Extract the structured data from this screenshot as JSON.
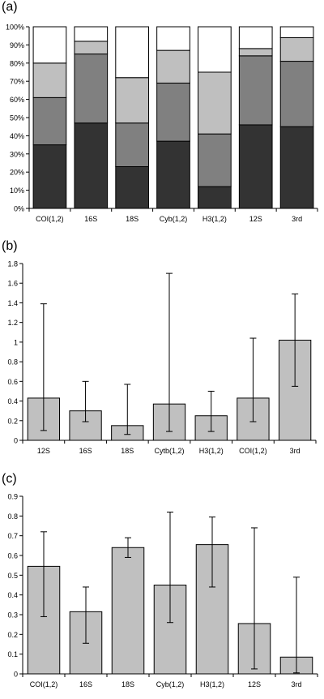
{
  "chart_data": [
    {
      "panel_label": "(a)",
      "type": "bar",
      "stacked": true,
      "percent": true,
      "categories": [
        "COI(1,2)",
        "16S",
        "18S",
        "Cyb(1,2)",
        "H3(1,2)",
        "12S",
        "3rd"
      ],
      "series": [
        {
          "color": "#333333",
          "values": [
            35,
            47,
            23,
            37,
            12,
            46,
            45
          ]
        },
        {
          "color": "#808080",
          "values": [
            26,
            38,
            24,
            32,
            29,
            38,
            36
          ]
        },
        {
          "color": "#bfbfbf",
          "values": [
            19,
            7,
            25,
            18,
            34,
            4,
            13
          ]
        },
        {
          "color": "#ffffff",
          "values": [
            20,
            8,
            28,
            13,
            25,
            12,
            6
          ]
        }
      ],
      "ylim": [
        0,
        100
      ],
      "yticks": [
        "0%",
        "10%",
        "20%",
        "30%",
        "40%",
        "50%",
        "60%",
        "70%",
        "80%",
        "90%",
        "100%"
      ],
      "grid": false,
      "legend": "none"
    },
    {
      "panel_label": "(b)",
      "type": "bar",
      "categories": [
        "12S",
        "16S",
        "18S",
        "Cytb(1,2)",
        "H3(1,2)",
        "COI(1,2)",
        "3rd"
      ],
      "values": [
        0.43,
        0.3,
        0.15,
        0.37,
        0.25,
        0.43,
        1.02
      ],
      "err_low": [
        0.1,
        0.19,
        0.06,
        0.09,
        0.09,
        0.19,
        0.55
      ],
      "err_high": [
        1.39,
        0.6,
        0.57,
        1.7,
        0.5,
        1.04,
        1.49
      ],
      "bar_color": "#c0c0c0",
      "ylim": [
        0,
        1.8
      ],
      "yticks": [
        "0",
        "0.2",
        "0.4",
        "0.6",
        "0.8",
        "1",
        "1.2",
        "1.4",
        "1.6",
        "1.8"
      ],
      "grid": false,
      "legend": "none"
    },
    {
      "panel_label": "(c)",
      "type": "bar",
      "categories": [
        "COI(1,2)",
        "16S",
        "18S",
        "Cyb(1,2)",
        "H3(1,2)",
        "12S",
        "3rd"
      ],
      "values": [
        0.545,
        0.315,
        0.64,
        0.45,
        0.655,
        0.255,
        0.085
      ],
      "err_low": [
        0.29,
        0.155,
        0.59,
        0.26,
        0.44,
        0.025,
        0.005
      ],
      "err_high": [
        0.72,
        0.44,
        0.69,
        0.82,
        0.795,
        0.74,
        0.49
      ],
      "bar_color": "#c0c0c0",
      "ylim": [
        0,
        0.9
      ],
      "yticks": [
        "0",
        "0.1",
        "0.2",
        "0.3",
        "0.4",
        "0.5",
        "0.6",
        "0.7",
        "0.8",
        "0.9"
      ],
      "grid": false,
      "legend": "none"
    }
  ]
}
